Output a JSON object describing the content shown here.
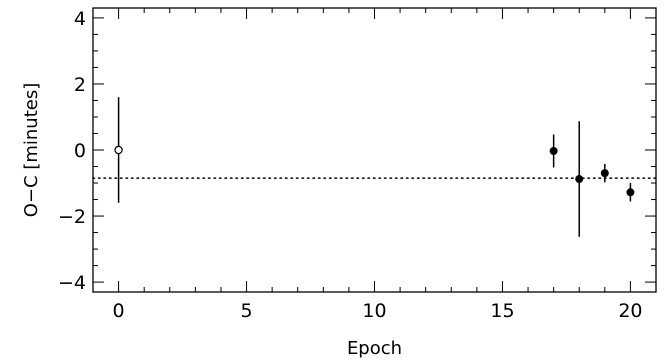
{
  "chart_data": {
    "type": "scatter",
    "title": "",
    "xlabel": "Epoch",
    "ylabel": "O−C [minutes]",
    "xlim": [
      -1,
      21
    ],
    "ylim": [
      -4.3,
      4.3
    ],
    "xticks": [
      0,
      5,
      10,
      15,
      20
    ],
    "xtick_labels": [
      "0",
      "5",
      "10",
      "15",
      "20"
    ],
    "yticks": [
      -4,
      -2,
      0,
      2,
      4
    ],
    "ytick_labels": [
      "−4",
      "−2",
      "0",
      "2",
      "4"
    ],
    "grid": false,
    "reference_line": {
      "y": -0.85,
      "style": "dotted"
    },
    "series": [
      {
        "marker": "open-circle",
        "color": "#000000",
        "points": [
          {
            "x": 0,
            "y": 0.0,
            "err": 1.6
          }
        ]
      },
      {
        "marker": "filled-circle",
        "color": "#000000",
        "points": [
          {
            "x": 17,
            "y": -0.03,
            "err": 0.5
          },
          {
            "x": 18,
            "y": -0.88,
            "err": 1.75
          },
          {
            "x": 19,
            "y": -0.7,
            "err": 0.28
          },
          {
            "x": 20,
            "y": -1.28,
            "err": 0.28
          }
        ]
      }
    ]
  }
}
